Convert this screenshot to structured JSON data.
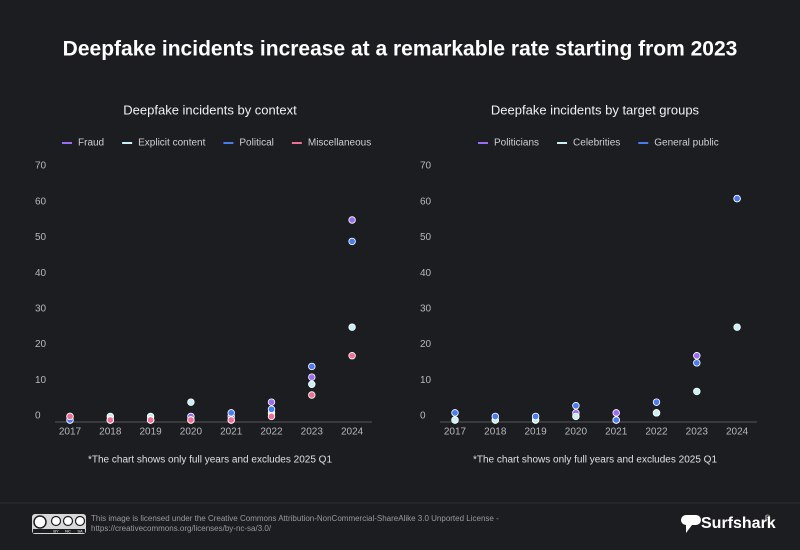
{
  "title": "Deepfake incidents increase at a remarkable rate starting from 2023",
  "chart_data": [
    {
      "type": "line",
      "title": "Deepfake incidents by context",
      "categories": [
        "2017",
        "2018",
        "2019",
        "2020",
        "2021",
        "2022",
        "2023",
        "2024"
      ],
      "series": [
        {
          "name": "Fraud",
          "color": "#9b6cf0",
          "values": [
            0,
            0,
            0,
            1,
            1,
            5,
            12,
            56
          ]
        },
        {
          "name": "Explicit content",
          "color": "#c8f0f5",
          "values": [
            1,
            1,
            1,
            5,
            0,
            2,
            10,
            26
          ]
        },
        {
          "name": "Political",
          "color": "#4a7cf0",
          "values": [
            0,
            0,
            0,
            0,
            2,
            3,
            15,
            50
          ]
        },
        {
          "name": "Miscellaneous",
          "color": "#f07095",
          "values": [
            1,
            0,
            0,
            0,
            0,
            1,
            7,
            18
          ]
        }
      ],
      "ylim": [
        0,
        70
      ],
      "yticks": [
        0,
        10,
        20,
        30,
        40,
        50,
        60,
        70
      ],
      "grid": false,
      "legend": "top",
      "note": "*The chart shows only full years and excludes 2025 Q1"
    },
    {
      "type": "line",
      "title": "Deepfake incidents by target groups",
      "categories": [
        "2017",
        "2018",
        "2019",
        "2020",
        "2021",
        "2022",
        "2023",
        "2024"
      ],
      "series": [
        {
          "name": "Politicians",
          "color": "#9b6cf0",
          "values": [
            0,
            0,
            0,
            2,
            2,
            2,
            18,
            62
          ]
        },
        {
          "name": "Celebrities",
          "color": "#c8f0f5",
          "values": [
            0,
            0,
            0,
            1,
            0,
            2,
            8,
            26
          ]
        },
        {
          "name": "General public",
          "color": "#4a7cf0",
          "values": [
            2,
            1,
            1,
            4,
            0,
            5,
            16,
            62
          ]
        }
      ],
      "ylim": [
        0,
        70
      ],
      "yticks": [
        0,
        10,
        20,
        30,
        40,
        50,
        60,
        70
      ],
      "grid": false,
      "legend": "top",
      "note": "*The chart shows only full years and excludes 2025 Q1"
    }
  ],
  "footer": {
    "cc_labels": [
      "BY",
      "NC",
      "SA"
    ],
    "license": [
      "This image is licensed under the Creative Commons Attribution-NonCommercial-ShareAlike 3.0 Unported License -",
      "https://creativecommons.org/licenses/by-nc-sa/3.0/"
    ],
    "brand": "Surfshark",
    "brand_mark": "®"
  }
}
